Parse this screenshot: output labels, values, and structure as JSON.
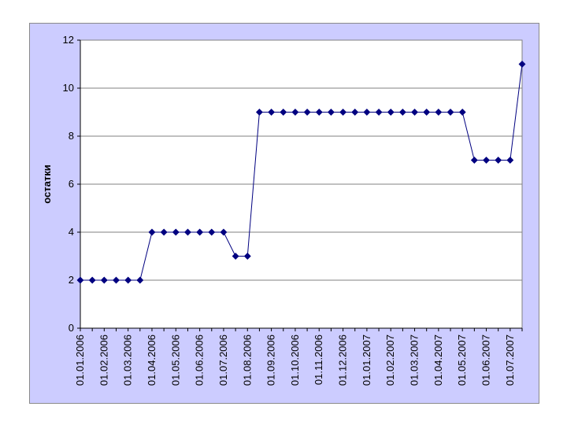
{
  "chart_data": {
    "type": "line",
    "xlabel": "",
    "ylabel": "остатки",
    "ylim": [
      0,
      12
    ],
    "yticks": [
      0,
      2,
      4,
      6,
      8,
      10,
      12
    ],
    "grid": "horizontal",
    "legend": "none",
    "colors": {
      "series": "#000080",
      "plot_bg": "#ffffff",
      "frame_bg": "#ccccff",
      "grid": "#808080"
    },
    "x_tick_labels": [
      "01.01.2006",
      "01.02.2006",
      "01.03.2006",
      "01.04.2006",
      "01.05.2006",
      "01.06.2006",
      "01.07.2006",
      "01.08.2006",
      "01.09.2006",
      "01.10.2006",
      "01.11.2006",
      "01.12.2006",
      "01.01.2007",
      "01.02.2007",
      "01.03.2007",
      "01.04.2007",
      "01.05.2007",
      "01.06.2007",
      "01.07.2007"
    ],
    "series": [
      {
        "marker": "diamond",
        "points": [
          {
            "x": "2006-01-01",
            "y": 2
          },
          {
            "x": "2006-01-15",
            "y": 2
          },
          {
            "x": "2006-02-01",
            "y": 2
          },
          {
            "x": "2006-02-15",
            "y": 2
          },
          {
            "x": "2006-03-01",
            "y": 2
          },
          {
            "x": "2006-03-15",
            "y": 2
          },
          {
            "x": "2006-04-01",
            "y": 4
          },
          {
            "x": "2006-04-15",
            "y": 4
          },
          {
            "x": "2006-05-01",
            "y": 4
          },
          {
            "x": "2006-05-15",
            "y": 4
          },
          {
            "x": "2006-06-01",
            "y": 4
          },
          {
            "x": "2006-06-15",
            "y": 4
          },
          {
            "x": "2006-07-01",
            "y": 4
          },
          {
            "x": "2006-07-15",
            "y": 3
          },
          {
            "x": "2006-08-01",
            "y": 3
          },
          {
            "x": "2006-08-15",
            "y": 9
          },
          {
            "x": "2006-09-01",
            "y": 9
          },
          {
            "x": "2006-09-15",
            "y": 9
          },
          {
            "x": "2006-10-01",
            "y": 9
          },
          {
            "x": "2006-10-15",
            "y": 9
          },
          {
            "x": "2006-11-01",
            "y": 9
          },
          {
            "x": "2006-11-15",
            "y": 9
          },
          {
            "x": "2006-12-01",
            "y": 9
          },
          {
            "x": "2006-12-15",
            "y": 9
          },
          {
            "x": "2007-01-01",
            "y": 9
          },
          {
            "x": "2007-01-15",
            "y": 9
          },
          {
            "x": "2007-02-01",
            "y": 9
          },
          {
            "x": "2007-02-15",
            "y": 9
          },
          {
            "x": "2007-03-01",
            "y": 9
          },
          {
            "x": "2007-03-15",
            "y": 9
          },
          {
            "x": "2007-04-01",
            "y": 9
          },
          {
            "x": "2007-04-15",
            "y": 9
          },
          {
            "x": "2007-05-01",
            "y": 9
          },
          {
            "x": "2007-05-15",
            "y": 7
          },
          {
            "x": "2007-06-01",
            "y": 7
          },
          {
            "x": "2007-06-15",
            "y": 7
          },
          {
            "x": "2007-07-01",
            "y": 7
          },
          {
            "x": "2007-07-15",
            "y": 11
          }
        ]
      }
    ]
  }
}
